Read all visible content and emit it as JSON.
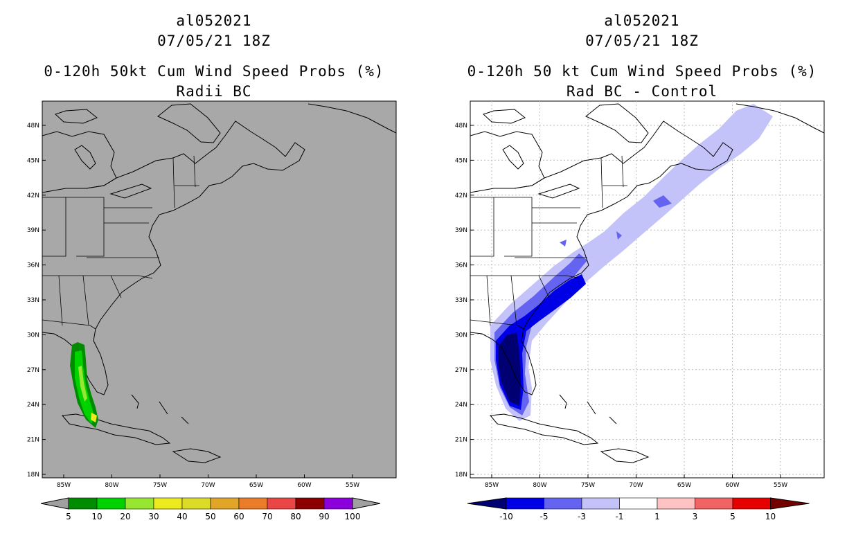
{
  "panels": [
    {
      "id": "left",
      "storm_id": "al052021",
      "datetime": "07/05/21 18Z",
      "title_line1": "0-120h 50kt Cum Wind Speed Probs (%)",
      "title_line2": "Radii BC",
      "background": "#a8a8a8",
      "colorbar": {
        "labels": [
          "5",
          "10",
          "20",
          "30",
          "40",
          "50",
          "60",
          "70",
          "80",
          "90",
          "100"
        ],
        "colors": [
          "#008c00",
          "#00d200",
          "#96e632",
          "#ebeb1e",
          "#dcdc28",
          "#e1a528",
          "#eb7d28",
          "#eb4646",
          "#8c0000",
          "#8c00dc"
        ],
        "end_color": "#a0a0a0"
      }
    },
    {
      "id": "right",
      "storm_id": "al052021",
      "datetime": "07/05/21 18Z",
      "title_line1": "0-120h 50 kt Cum Wind Speed Probs (%)",
      "title_line2": "Rad BC - Control",
      "background": "#ffffff",
      "colorbar": {
        "labels": [
          "-10",
          "-5",
          "-3",
          "-1",
          "1",
          "3",
          "5",
          "10"
        ],
        "colors": [
          "#000073",
          "#0000e6",
          "#6464f0",
          "#c3c3fa",
          "#ffffff",
          "#ffc3c3",
          "#f06464",
          "#e60000",
          "#730000"
        ],
        "low_end_color": "#000073",
        "high_end_color": "#730000"
      }
    }
  ],
  "axes": {
    "lat_labels": [
      "48N",
      "45N",
      "42N",
      "39N",
      "36N",
      "33N",
      "30N",
      "27N",
      "24N",
      "21N",
      "18N"
    ],
    "lon_labels": [
      "85W",
      "80W",
      "75W",
      "70W",
      "65W",
      "60W",
      "55W"
    ]
  }
}
